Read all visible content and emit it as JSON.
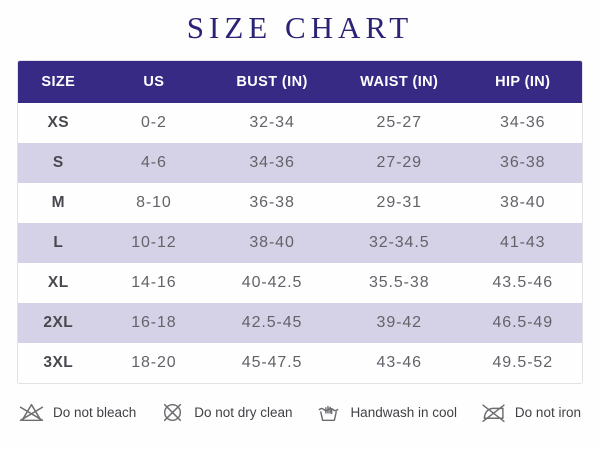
{
  "title": "SIZE CHART",
  "colors": {
    "title_text": "#2b2376",
    "header_bg": "#362a85",
    "header_text": "#ffffff",
    "row_alt_bg": "#d5d2e7",
    "row_bg": "#ffffff",
    "body_text": "#626369",
    "care_text": "#414145"
  },
  "table": {
    "headers": [
      "SIZE",
      "US",
      "BUST (IN)",
      "WAIST (IN)",
      "HIP (IN)"
    ],
    "rows": [
      [
        "XS",
        "0-2",
        "32-34",
        "25-27",
        "34-36"
      ],
      [
        "S",
        "4-6",
        "34-36",
        "27-29",
        "36-38"
      ],
      [
        "M",
        "8-10",
        "36-38",
        "29-31",
        "38-40"
      ],
      [
        "L",
        "10-12",
        "38-40",
        "32-34.5",
        "41-43"
      ],
      [
        "XL",
        "14-16",
        "40-42.5",
        "35.5-38",
        "43.5-46"
      ],
      [
        "2XL",
        "16-18",
        "42.5-45",
        "39-42",
        "46.5-49"
      ],
      [
        "3XL",
        "18-20",
        "45-47.5",
        "43-46",
        "49.5-52"
      ]
    ]
  },
  "care": [
    {
      "icon": "do-not-bleach-icon",
      "label": "Do not bleach"
    },
    {
      "icon": "do-not-dry-clean-icon",
      "label": "Do not dry clean"
    },
    {
      "icon": "handwash-icon",
      "label": "Handwash in cool"
    },
    {
      "icon": "do-not-iron-icon",
      "label": "Do not iron"
    }
  ],
  "chart_data": {
    "type": "table",
    "title": "SIZE CHART",
    "columns": [
      "SIZE",
      "US",
      "BUST (IN)",
      "WAIST (IN)",
      "HIP (IN)"
    ],
    "rows": [
      [
        "XS",
        "0-2",
        "32-34",
        "25-27",
        "34-36"
      ],
      [
        "S",
        "4-6",
        "34-36",
        "27-29",
        "36-38"
      ],
      [
        "M",
        "8-10",
        "36-38",
        "29-31",
        "38-40"
      ],
      [
        "L",
        "10-12",
        "38-40",
        "32-34.5",
        "41-43"
      ],
      [
        "XL",
        "14-16",
        "40-42.5",
        "35.5-38",
        "43.5-46"
      ],
      [
        "2XL",
        "16-18",
        "42.5-45",
        "39-42",
        "46.5-49"
      ],
      [
        "3XL",
        "18-20",
        "45-47.5",
        "43-46",
        "49.5-52"
      ]
    ],
    "footnotes": [
      "Do not bleach",
      "Do not dry clean",
      "Handwash in cool",
      "Do not iron"
    ]
  }
}
